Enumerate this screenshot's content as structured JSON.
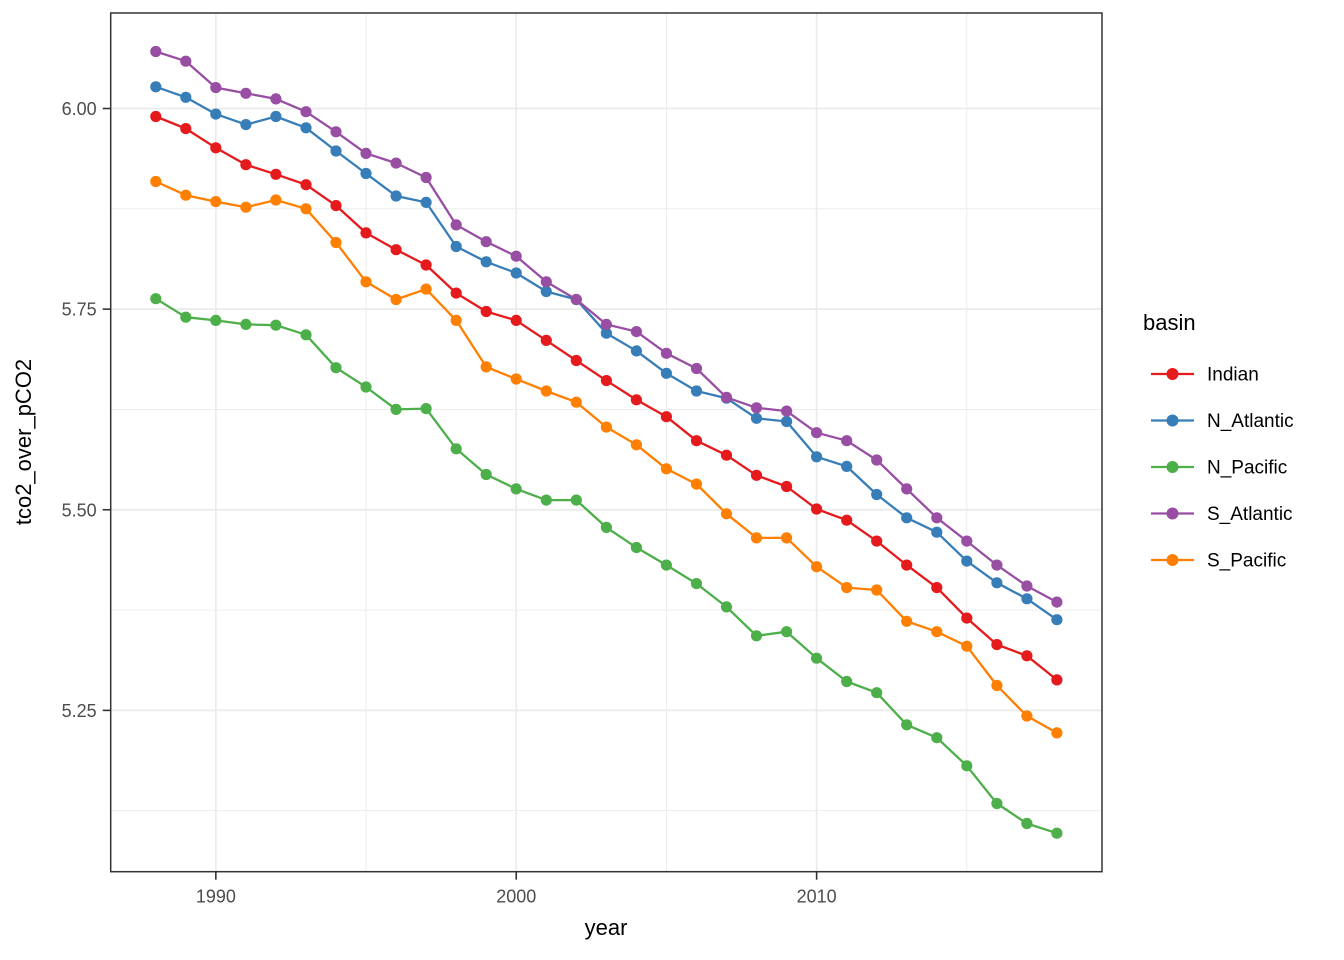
{
  "chart_data": {
    "type": "line",
    "title": "",
    "xlabel": "year",
    "ylabel": "tco2_over_pCO2",
    "legend_title": "basin",
    "legend_position": "right",
    "grid": true,
    "xlim": [
      1986.5,
      2019.5
    ],
    "ylim": [
      5.049,
      6.119
    ],
    "x_major_ticks": [
      1990,
      2000,
      2010
    ],
    "x_minor_gridlines": [
      1995,
      2005,
      2015
    ],
    "x_tick_labels": [
      "1990",
      "2000",
      "2010"
    ],
    "y_major_ticks": [
      5.25,
      5.5,
      5.75,
      6.0
    ],
    "y_tick_labels": [
      "5.25",
      "5.50",
      "5.75",
      "6.00"
    ],
    "y_minor_gridlines": [
      5.125,
      5.375,
      5.625,
      5.875
    ],
    "x": [
      1988,
      1989,
      1990,
      1991,
      1992,
      1993,
      1994,
      1995,
      1996,
      1997,
      1998,
      1999,
      2000,
      2001,
      2002,
      2003,
      2004,
      2005,
      2006,
      2007,
      2008,
      2009,
      2010,
      2011,
      2012,
      2013,
      2014,
      2015,
      2016,
      2017,
      2018
    ],
    "series": [
      {
        "name": "Indian",
        "color": "#E41A1C",
        "values": [
          5.99,
          5.975,
          5.951,
          5.93,
          5.918,
          5.905,
          5.879,
          5.845,
          5.824,
          5.805,
          5.77,
          5.747,
          5.736,
          5.711,
          5.686,
          5.661,
          5.637,
          5.616,
          5.586,
          5.568,
          5.543,
          5.529,
          5.501,
          5.487,
          5.461,
          5.431,
          5.403,
          5.365,
          5.332,
          5.318,
          5.288
        ]
      },
      {
        "name": "N_Atlantic",
        "color": "#377EB8",
        "values": [
          6.027,
          6.014,
          5.993,
          5.98,
          5.99,
          5.976,
          5.947,
          5.919,
          5.891,
          5.883,
          5.828,
          5.809,
          5.795,
          5.772,
          5.762,
          5.72,
          5.698,
          5.67,
          5.648,
          5.639,
          5.614,
          5.61,
          5.566,
          5.554,
          5.519,
          5.49,
          5.472,
          5.436,
          5.409,
          5.389,
          5.363
        ]
      },
      {
        "name": "N_Pacific",
        "color": "#4DAF4A",
        "values": [
          5.763,
          5.74,
          5.736,
          5.731,
          5.73,
          5.718,
          5.677,
          5.653,
          5.625,
          5.626,
          5.576,
          5.544,
          5.526,
          5.512,
          5.512,
          5.478,
          5.453,
          5.431,
          5.408,
          5.379,
          5.343,
          5.348,
          5.315,
          5.286,
          5.272,
          5.232,
          5.216,
          5.181,
          5.134,
          5.109,
          5.097
        ]
      },
      {
        "name": "S_Atlantic",
        "color": "#984EA3",
        "values": [
          6.071,
          6.059,
          6.026,
          6.019,
          6.012,
          5.996,
          5.971,
          5.944,
          5.932,
          5.914,
          5.855,
          5.834,
          5.816,
          5.784,
          5.762,
          5.731,
          5.722,
          5.695,
          5.676,
          5.64,
          5.627,
          5.623,
          5.596,
          5.586,
          5.562,
          5.526,
          5.49,
          5.461,
          5.431,
          5.405,
          5.385
        ]
      },
      {
        "name": "S_Pacific",
        "color": "#FF7F00",
        "values": [
          5.909,
          5.892,
          5.884,
          5.877,
          5.886,
          5.875,
          5.833,
          5.784,
          5.762,
          5.775,
          5.736,
          5.678,
          5.663,
          5.648,
          5.634,
          5.603,
          5.581,
          5.551,
          5.532,
          5.495,
          5.465,
          5.465,
          5.429,
          5.403,
          5.4,
          5.361,
          5.348,
          5.33,
          5.281,
          5.243,
          5.222
        ]
      }
    ],
    "theme": {
      "panel_background": "#ffffff",
      "panel_border": "#333333",
      "gridline_color": "#ebebeb",
      "tick_color": "#333333",
      "tick_label_color": "#4d4d4d",
      "axis_title_color": "#000000"
    }
  }
}
